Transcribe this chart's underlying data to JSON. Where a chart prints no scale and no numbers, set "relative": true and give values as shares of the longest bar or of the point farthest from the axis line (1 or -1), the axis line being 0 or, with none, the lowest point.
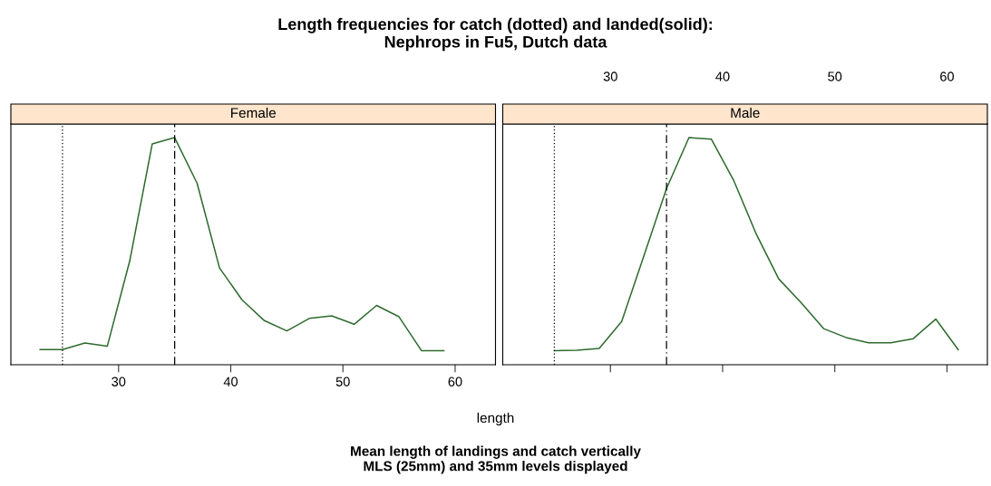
{
  "chart_data": [
    {
      "type": "line",
      "title": "Female",
      "xlabel": "length",
      "relative": true,
      "xlim": [
        20.4,
        63.6
      ],
      "xticks": [
        30,
        40,
        50,
        60
      ],
      "tick_labels": "x",
      "grid": false,
      "legend": false,
      "marker": "none",
      "line_style": "solid",
      "annotations": [
        "Length frequencies for catch (dotted) and landed(solid):\nNephrops in Fu5, Dutch data",
        "Mean length of landings and catch vertically\nMLS (25mm) and 35mm levels displayed"
      ],
      "ref_lines": [
        {
          "axis": "x",
          "value": 25,
          "line_style": "dotted",
          "color": "#000000"
        },
        {
          "axis": "x",
          "value": 35,
          "line_style": "dashed",
          "color": "#000000"
        }
      ],
      "series": [
        {
          "color": "#2e6b2e",
          "x": [
            23,
            25,
            27,
            29,
            31,
            33,
            35,
            37,
            39,
            41,
            43,
            45,
            47,
            49,
            51,
            53,
            55,
            57,
            59
          ],
          "values": [
            0.067,
            0.067,
            0.096,
            0.082,
            0.458,
            0.972,
            1,
            0.799,
            0.426,
            0.286,
            0.194,
            0.149,
            0.204,
            0.215,
            0.178,
            0.261,
            0.211,
            0.062,
            0.062
          ]
        }
      ]
    },
    {
      "type": "line",
      "title": "Male",
      "relative": true,
      "xlim": [
        20.4,
        63.6
      ],
      "xticks": [
        30,
        40,
        50,
        60
      ],
      "tick_labels": "x",
      "grid": false,
      "legend": false,
      "marker": "none",
      "line_style": "solid",
      "ref_lines": [
        {
          "axis": "x",
          "value": 25,
          "line_style": "dotted",
          "color": "#000000"
        },
        {
          "axis": "x",
          "value": 35,
          "line_style": "dashed",
          "color": "#000000"
        }
      ],
      "series": [
        {
          "color": "#2e6b2e",
          "x": [
            25,
            27,
            29,
            31,
            33,
            35,
            37,
            39,
            41,
            43,
            45,
            47,
            49,
            51,
            53,
            55,
            57,
            59,
            61
          ],
          "values": [
            0.062,
            0.064,
            0.072,
            0.19,
            0.482,
            0.776,
            1,
            0.993,
            0.81,
            0.575,
            0.378,
            0.273,
            0.159,
            0.12,
            0.097,
            0.097,
            0.115,
            0.201,
            0.066
          ]
        }
      ]
    }
  ]
}
